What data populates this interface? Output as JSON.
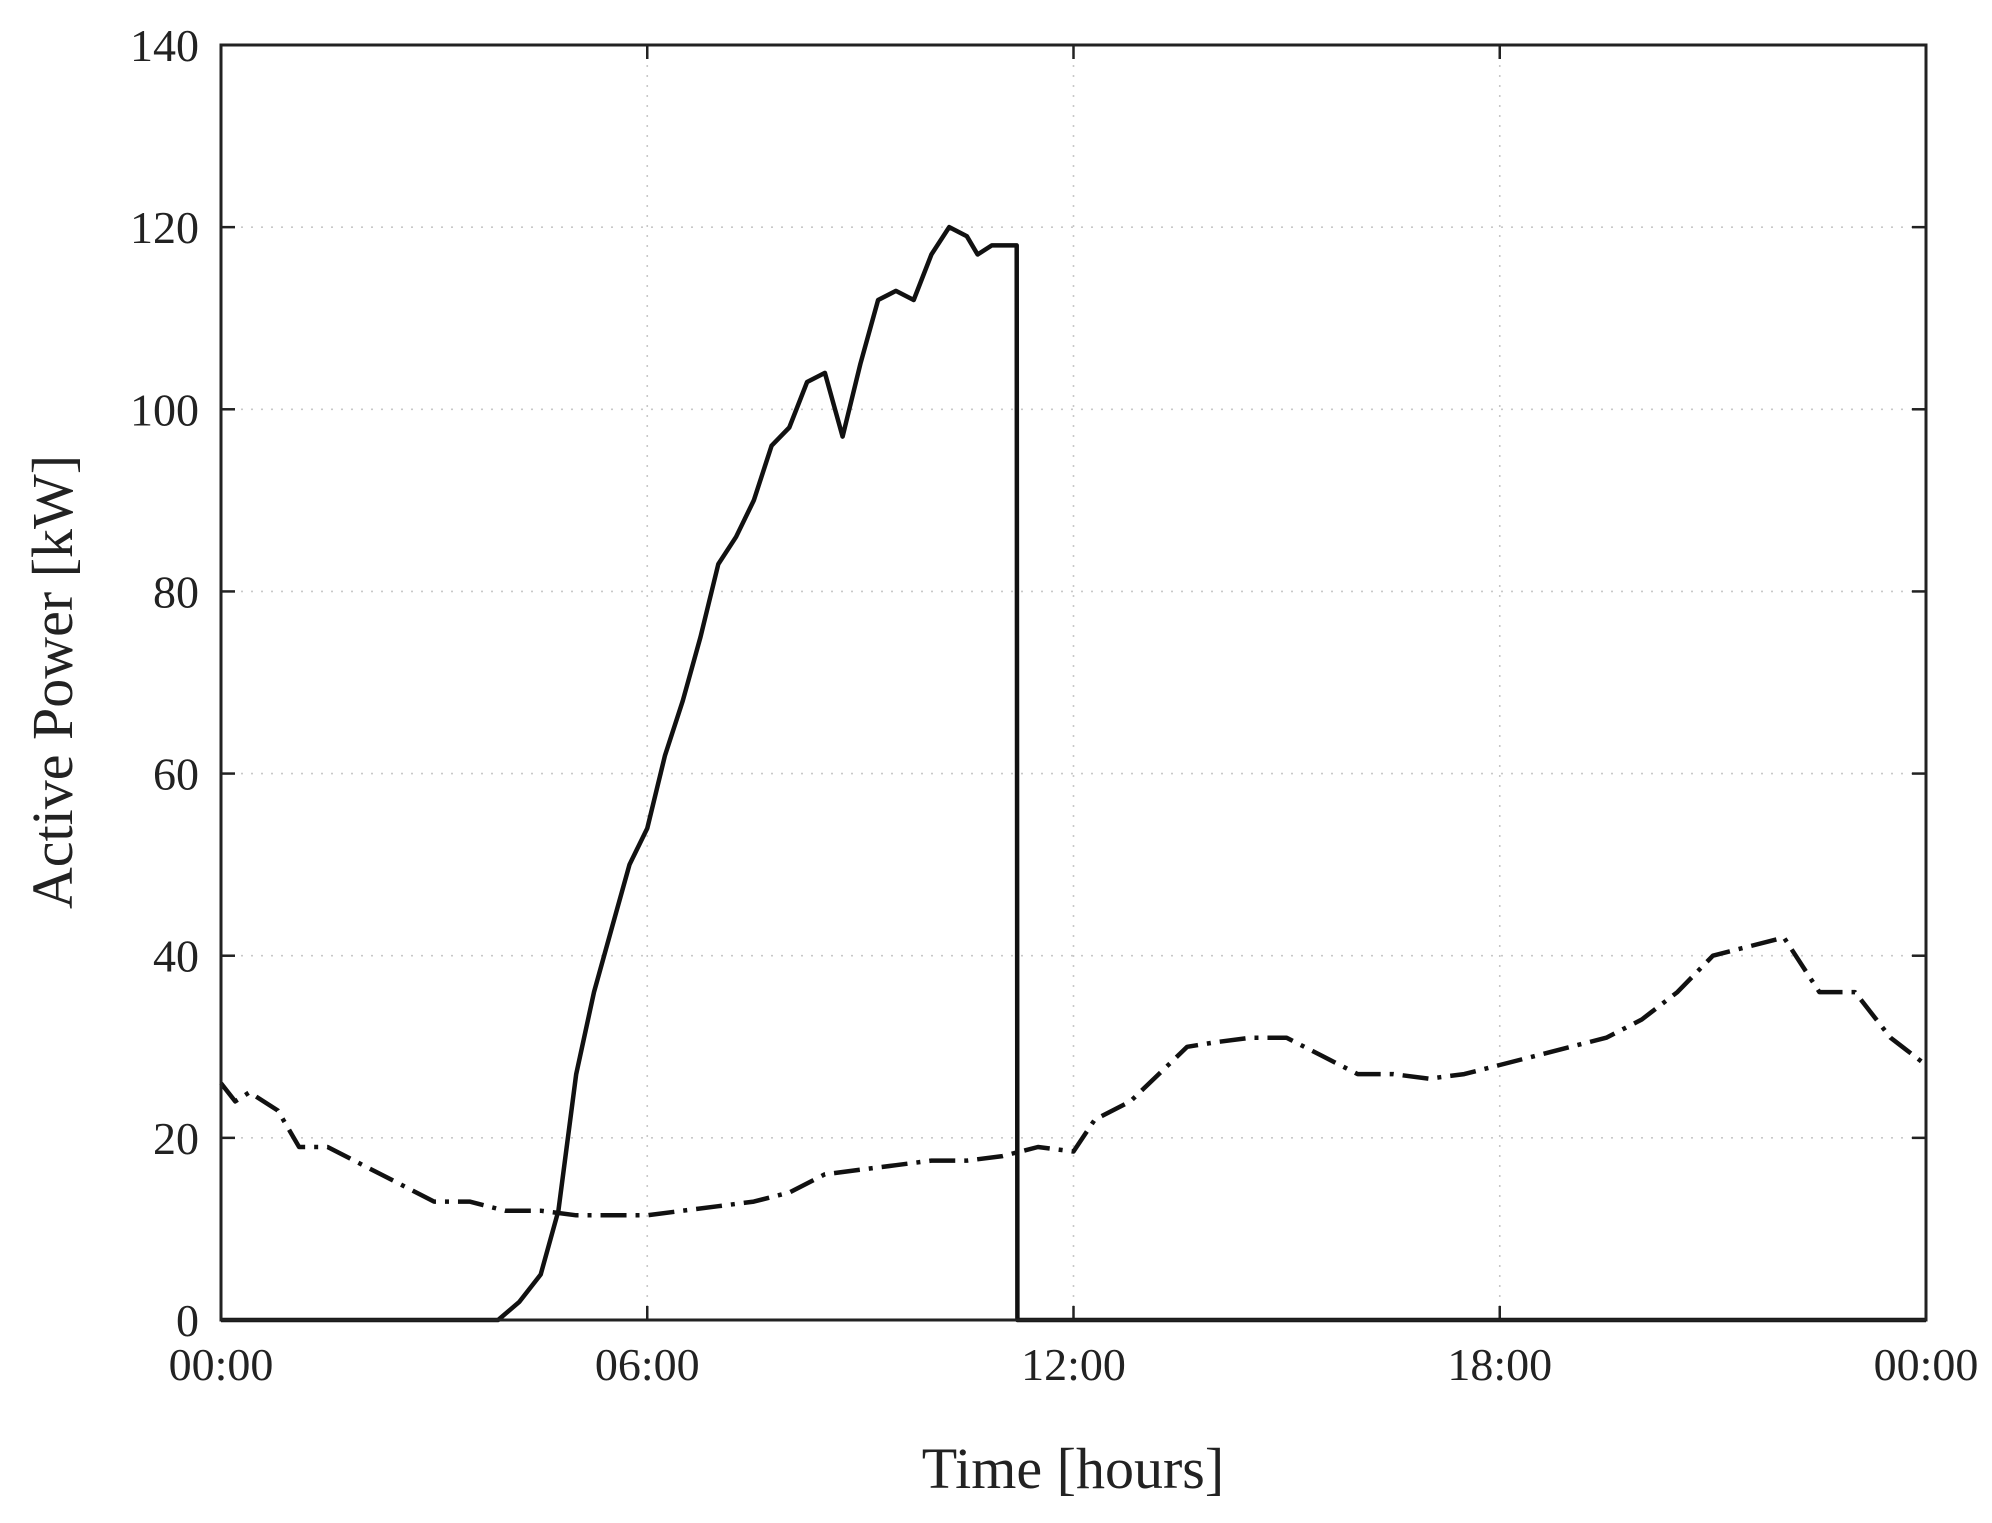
{
  "chart_data": {
    "type": "line",
    "title": "",
    "xlabel": "Time [hours]",
    "ylabel": "Active Power [kW]",
    "xlim": [
      0,
      24
    ],
    "ylim": [
      0,
      140
    ],
    "x_ticks": [
      {
        "value": 0,
        "label": "00:00"
      },
      {
        "value": 6,
        "label": "06:00"
      },
      {
        "value": 12,
        "label": "12:00"
      },
      {
        "value": 18,
        "label": "18:00"
      },
      {
        "value": 24,
        "label": "00:00"
      }
    ],
    "y_ticks": [
      {
        "value": 0,
        "label": "0"
      },
      {
        "value": 20,
        "label": "20"
      },
      {
        "value": 40,
        "label": "40"
      },
      {
        "value": 60,
        "label": "60"
      },
      {
        "value": 80,
        "label": "80"
      },
      {
        "value": 100,
        "label": "100"
      },
      {
        "value": 120,
        "label": "120"
      },
      {
        "value": 140,
        "label": "140"
      }
    ],
    "grid": true,
    "legend": "none",
    "series": [
      {
        "style": "solid",
        "color": "#111111",
        "x": [
          0,
          3.0,
          3.9,
          4.2,
          4.5,
          4.75,
          5.0,
          5.25,
          5.5,
          5.75,
          6.0,
          6.25,
          6.5,
          6.75,
          7.0,
          7.25,
          7.5,
          7.75,
          8.0,
          8.25,
          8.5,
          8.75,
          9.0,
          9.25,
          9.5,
          9.75,
          10.0,
          10.25,
          10.5,
          10.65,
          10.85,
          11.0,
          11.15,
          11.2,
          11.21,
          11.5,
          12.0,
          18.0,
          24.0
        ],
        "y": [
          0,
          0,
          0,
          2,
          5,
          12,
          27,
          36,
          43,
          50,
          54,
          62,
          68,
          75,
          83,
          86,
          90,
          96,
          98,
          103,
          104,
          97,
          105,
          112,
          113,
          112,
          117,
          120,
          119,
          117,
          118,
          118,
          118,
          118,
          0,
          0,
          0,
          0,
          0
        ]
      },
      {
        "style": "dash-dot",
        "color": "#111111",
        "x": [
          0,
          0.2,
          0.4,
          0.8,
          1.1,
          1.5,
          2.0,
          2.5,
          3.0,
          3.5,
          4.0,
          4.5,
          5.0,
          5.5,
          6.0,
          6.5,
          7.0,
          7.5,
          8.0,
          8.5,
          9.0,
          9.5,
          10.0,
          10.5,
          11.0,
          11.5,
          12.0,
          12.3,
          12.8,
          13.2,
          13.6,
          14.0,
          14.5,
          15.0,
          15.5,
          16.0,
          16.5,
          17.0,
          17.5,
          18.0,
          18.5,
          19.0,
          19.5,
          20.0,
          20.5,
          21.0,
          21.5,
          22.0,
          22.5,
          23.0,
          23.5,
          24.0
        ],
        "y": [
          26,
          24,
          25,
          23,
          19,
          19,
          17,
          15,
          13,
          13,
          12,
          12,
          11.5,
          11.5,
          11.5,
          12,
          12.5,
          13,
          14,
          16,
          16.5,
          17,
          17.5,
          17.5,
          18,
          19,
          18.5,
          22,
          24,
          27,
          30,
          30.5,
          31,
          31,
          29,
          27,
          27,
          26.5,
          27,
          28,
          29,
          30,
          31,
          33,
          36,
          40,
          41,
          42,
          36,
          36,
          31,
          28
        ]
      }
    ]
  }
}
